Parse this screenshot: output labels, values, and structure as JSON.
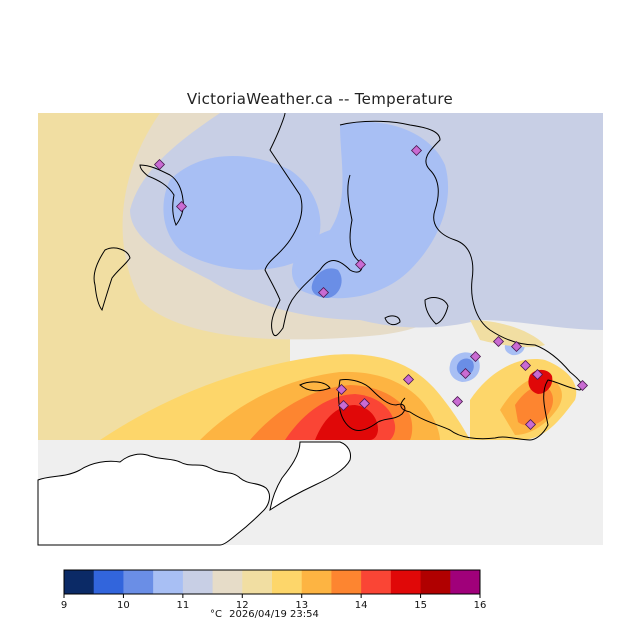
{
  "title": "VictoriaWeather.ca  --  Temperature",
  "unit": "°C",
  "timestamp": "2026/04/19 23:54",
  "legend": {
    "ticks": [
      "9",
      "10",
      "11",
      "12",
      "13",
      "14",
      "15",
      "16"
    ],
    "colors": [
      "#0b2a66",
      "#3265dc",
      "#6a8ee6",
      "#a8bff4",
      "#c8cfe5",
      "#e6dcc8",
      "#f1dea2",
      "#fdd66a",
      "#fdb442",
      "#fd8530",
      "#fa4535",
      "#e00808",
      "#b00000",
      "#a0007a"
    ]
  },
  "colors": {
    "land_bg": "#efefef",
    "station_fill": "#c96bd2",
    "coast": "#000000"
  }
}
